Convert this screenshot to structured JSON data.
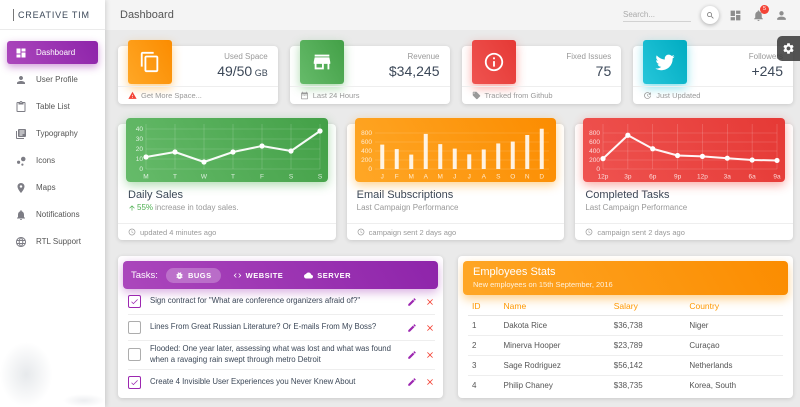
{
  "brand": "CREATIVE TIM",
  "sidebar": {
    "items": [
      {
        "label": "Dashboard",
        "icon": "dashboard-icon",
        "active": true
      },
      {
        "label": "User Profile",
        "icon": "person-icon",
        "active": false
      },
      {
        "label": "Table List",
        "icon": "clipboard-icon",
        "active": false
      },
      {
        "label": "Typography",
        "icon": "library-icon",
        "active": false
      },
      {
        "label": "Icons",
        "icon": "bubble-icon",
        "active": false
      },
      {
        "label": "Maps",
        "icon": "place-icon",
        "active": false
      },
      {
        "label": "Notifications",
        "icon": "bell-icon",
        "active": false
      },
      {
        "label": "RTL Support",
        "icon": "globe-icon",
        "active": false
      }
    ]
  },
  "navbar": {
    "title": "Dashboard",
    "search_placeholder": "Search...",
    "notification_count": "5"
  },
  "stat_cards": [
    {
      "color": "orange",
      "icon": "copy-icon",
      "label": "Used Space",
      "value": "49/50",
      "unit": "GB",
      "footer": "Get More Space...",
      "footer_icon": "warning-icon",
      "footer_icon_color": "#f44336",
      "footer_link": true
    },
    {
      "color": "green",
      "icon": "store-icon",
      "label": "Revenue",
      "value": "$34,245",
      "unit": "",
      "footer": "Last 24 Hours",
      "footer_icon": "calendar-icon",
      "footer_icon_color": "#999999",
      "footer_link": false
    },
    {
      "color": "red",
      "icon": "info-icon",
      "label": "Fixed Issues",
      "value": "75",
      "unit": "",
      "footer": "Tracked from Github",
      "footer_icon": "tag-icon",
      "footer_icon_color": "#999999",
      "footer_link": false
    },
    {
      "color": "cyan",
      "icon": "twitter-icon",
      "label": "Followers",
      "value": "+245",
      "unit": "",
      "footer": "Just Updated",
      "footer_icon": "update-icon",
      "footer_icon_color": "#999999",
      "footer_link": false
    }
  ],
  "chart_data": [
    {
      "type": "line",
      "color": "green",
      "title": "Daily Sales",
      "subtitle_highlight": "55%",
      "subtitle_rest": "increase in today sales.",
      "footer": "updated 4 minutes ago",
      "footer_icon": "clock-icon",
      "categories": [
        "M",
        "T",
        "W",
        "T",
        "F",
        "S",
        "S"
      ],
      "values": [
        12,
        17,
        7,
        17,
        23,
        18,
        38
      ],
      "ylim": [
        0,
        45
      ],
      "yticks": [
        0,
        10,
        20,
        30,
        40
      ],
      "grid": true,
      "legend": "none"
    },
    {
      "type": "bar",
      "color": "orange",
      "title": "Email Subscriptions",
      "subtitle": "Last Campaign Performance",
      "footer": "campaign sent 2 days ago",
      "footer_icon": "clock-icon",
      "categories": [
        "J",
        "F",
        "M",
        "A",
        "M",
        "J",
        "J",
        "A",
        "S",
        "O",
        "N",
        "D"
      ],
      "values": [
        542,
        443,
        320,
        780,
        553,
        453,
        326,
        434,
        568,
        610,
        756,
        895
      ],
      "ylim": [
        0,
        1000
      ],
      "yticks": [
        0,
        200,
        400,
        600,
        800
      ],
      "grid": true,
      "legend": "none"
    },
    {
      "type": "line",
      "color": "red",
      "title": "Completed Tasks",
      "subtitle": "Last Campaign Performance",
      "footer": "campaign sent 2 days ago",
      "footer_icon": "clock-icon",
      "categories": [
        "12p",
        "3p",
        "6p",
        "9p",
        "12p",
        "3a",
        "6a",
        "9a"
      ],
      "values": [
        230,
        750,
        450,
        300,
        280,
        240,
        200,
        190
      ],
      "ylim": [
        0,
        1000
      ],
      "yticks": [
        0,
        200,
        400,
        600,
        800
      ],
      "grid": true,
      "legend": "none"
    }
  ],
  "tasks": {
    "title": "Tasks:",
    "tabs": [
      {
        "label": "BUGS",
        "icon": "bug-icon",
        "active": true
      },
      {
        "label": "WEBSITE",
        "icon": "code-icon",
        "active": false
      },
      {
        "label": "SERVER",
        "icon": "cloud-icon",
        "active": false
      }
    ],
    "items": [
      {
        "checked": true,
        "text": "Sign contract for \"What are conference organizers afraid of?\""
      },
      {
        "checked": false,
        "text": "Lines From Great Russian Literature? Or E-mails From My Boss?"
      },
      {
        "checked": false,
        "text": "Flooded: One year later, assessing what was lost and what was found when a ravaging rain swept through metro Detroit"
      },
      {
        "checked": true,
        "text": "Create 4 Invisible User Experiences you Never Knew About"
      }
    ]
  },
  "employees": {
    "title": "Employees Stats",
    "subtitle": "New employees on 15th September, 2016",
    "columns": [
      "ID",
      "Name",
      "Salary",
      "Country"
    ],
    "rows": [
      [
        "1",
        "Dakota Rice",
        "$36,738",
        "Niger"
      ],
      [
        "2",
        "Minerva Hooper",
        "$23,789",
        "Curaçao"
      ],
      [
        "3",
        "Sage Rodriguez",
        "$56,142",
        "Netherlands"
      ],
      [
        "4",
        "Philip Chaney",
        "$38,735",
        "Korea, South"
      ]
    ]
  },
  "colors": {
    "purple": "#9c27b0",
    "green": "#4caf50",
    "orange": "#ff9800",
    "red": "#f44336",
    "cyan": "#00bcd4",
    "text_dark": "#3c4858",
    "text_muted": "#999999"
  }
}
